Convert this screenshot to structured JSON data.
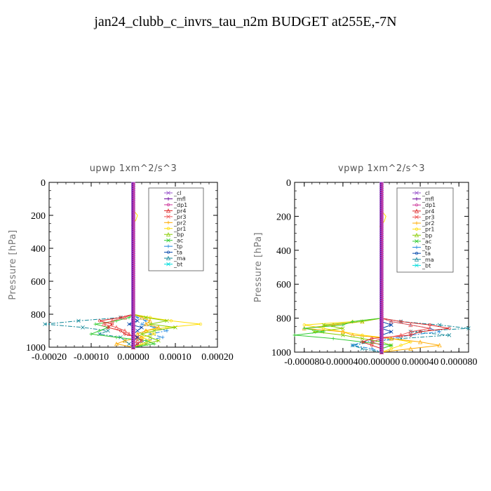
{
  "title": "jan24_clubb_c_invrs_tau_n2m  BUDGET at255E,-7N",
  "legend_items": [
    {
      "name": "_cl",
      "color": "#9955cc"
    },
    {
      "name": "_mfl",
      "color": "#660099"
    },
    {
      "name": "_dp1",
      "color": "#cc3399"
    },
    {
      "name": "_pr4",
      "color": "#dd2222"
    },
    {
      "name": "_pr3",
      "color": "#ee5555"
    },
    {
      "name": "_pr2",
      "color": "#ffaa00"
    },
    {
      "name": "_pr1",
      "color": "#ffdd00"
    },
    {
      "name": "_bp",
      "color": "#88cc00"
    },
    {
      "name": "_ac",
      "color": "#33cc33"
    },
    {
      "name": "_tp",
      "color": "#2288dd"
    },
    {
      "name": "_ta",
      "color": "#0044aa"
    },
    {
      "name": "_ma",
      "color": "#118899"
    },
    {
      "name": "_bt",
      "color": "#00dddd"
    }
  ],
  "chart_data": [
    {
      "type": "line",
      "title": "upwp   1xm^2/s^3",
      "ylabel": "Pressure [hPa]",
      "xlim": [
        -0.0002,
        0.0002
      ],
      "ylim": [
        1000,
        0
      ],
      "x_ticks": [
        "-0.00020",
        "-0.00010",
        "0.00000",
        "0.00010",
        "0.00020"
      ],
      "x_tick_values": [
        -0.0002,
        -0.0001,
        0,
        0.0001,
        0.0002
      ],
      "y_ticks": [
        "0",
        "200",
        "400",
        "600",
        "800",
        "1000"
      ],
      "y_tick_values": [
        0,
        200,
        400,
        600,
        800,
        1000
      ],
      "pressure": [
        800,
        820,
        840,
        860,
        880,
        900,
        920,
        940,
        960,
        980,
        1000
      ],
      "series": [
        {
          "name": "_ma",
          "values": [
            0,
            -3e-05,
            -0.00013,
            -0.00021,
            -0.00012,
            -6e-05,
            -8e-05,
            -3e-05,
            -2e-05,
            -1e-05,
            0
          ]
        },
        {
          "name": "_tp",
          "values": [
            0,
            1e-05,
            3e-05,
            2e-05,
            5e-05,
            8e-05,
            4e-05,
            7e-05,
            3e-05,
            1e-05,
            0
          ]
        },
        {
          "name": "_pr1",
          "values": [
            0,
            4e-05,
            9e-05,
            0.00016,
            8e-05,
            3e-05,
            5e-05,
            2e-05,
            4e-05,
            2e-05,
            0
          ]
        },
        {
          "name": "_pr2",
          "values": [
            0,
            2e-05,
            4e-05,
            3e-05,
            6e-05,
            3e-05,
            1e-05,
            2e-05,
            -2e-05,
            -4e-05,
            0
          ]
        },
        {
          "name": "_bp",
          "values": [
            0,
            3e-05,
            8e-05,
            4e-05,
            0.0001,
            5e-05,
            2e-05,
            4e-05,
            6e-05,
            3e-05,
            0
          ]
        },
        {
          "name": "_ac",
          "values": [
            0,
            -1e-05,
            -4e-05,
            -9e-05,
            -6e-05,
            -8e-05,
            -0.0001,
            -4e-05,
            3e-05,
            5e-05,
            0
          ]
        },
        {
          "name": "_pr4",
          "values": [
            0,
            -3e-05,
            -8e-05,
            -5e-05,
            -6e-05,
            -3e-05,
            -2e-05,
            1e-05,
            2e-05,
            1e-05,
            0
          ]
        },
        {
          "name": "_pr3",
          "values": [
            0,
            -2e-05,
            -5e-05,
            -7e-05,
            -4e-05,
            -2e-05,
            -1e-05,
            0,
            1e-05,
            0,
            0
          ]
        },
        {
          "name": "_ta",
          "values": [
            0,
            0,
            1e-05,
            -1e-05,
            2e-05,
            1e-05,
            0,
            1e-05,
            0,
            0,
            0
          ]
        },
        {
          "name": "_cl",
          "values": [
            0,
            0,
            0,
            0,
            0,
            0,
            0,
            0,
            0,
            0,
            0
          ]
        },
        {
          "name": "_mfl",
          "values": [
            0,
            0,
            0,
            0,
            0,
            0,
            0,
            0,
            0,
            0,
            0
          ]
        },
        {
          "name": "_dp1",
          "values": [
            0,
            0,
            0,
            0,
            0,
            0,
            0,
            0,
            0,
            0,
            0
          ]
        }
      ]
    },
    {
      "type": "line",
      "title": "vpwp   1xm^2/s^3",
      "ylabel": "Pressure [hPa]",
      "xlim": [
        -9e-05,
        9e-05
      ],
      "ylim": [
        1000,
        0
      ],
      "x_ticks": [
        "-0.000080",
        "-0.000040",
        "0.000000",
        "0.000040",
        "0.000080"
      ],
      "x_tick_values": [
        -8e-05,
        -4e-05,
        0,
        4e-05,
        8e-05
      ],
      "y_ticks": [
        "0",
        "200",
        "400",
        "600",
        "800",
        "1000"
      ],
      "y_tick_values": [
        0,
        200,
        400,
        600,
        800,
        1000
      ],
      "pressure": [
        800,
        820,
        840,
        860,
        880,
        900,
        920,
        940,
        960,
        980,
        1000
      ],
      "series": [
        {
          "name": "_ma",
          "values": [
            0,
            2e-05,
            6e-05,
            9e-05,
            3e-05,
            7e-05,
            2e-05,
            -1e-05,
            -3e-05,
            -2e-05,
            0
          ]
        },
        {
          "name": "_tp",
          "values": [
            0,
            1e-05,
            3e-05,
            5e-05,
            6e-05,
            3e-05,
            1e-05,
            -2e-05,
            -3e-05,
            -1e-05,
            0
          ]
        },
        {
          "name": "_pr1",
          "values": [
            0,
            -3e-05,
            -8e-05,
            -6e-05,
            -4e-05,
            -2e-05,
            1e-05,
            3e-05,
            2e-05,
            1e-05,
            0
          ]
        },
        {
          "name": "_pr2",
          "values": [
            0,
            -2e-05,
            -5e-05,
            -8e-05,
            -4e-05,
            -3e-05,
            1e-05,
            4e-05,
            6e-05,
            3e-05,
            0
          ]
        },
        {
          "name": "_bp",
          "values": [
            0,
            -2e-05,
            -6e-05,
            -4e-05,
            -7e-05,
            -4e-05,
            -2e-05,
            0,
            1e-05,
            0,
            0
          ]
        },
        {
          "name": "_ac",
          "values": [
            0,
            -3e-05,
            -4e-05,
            -8e-05,
            -6e-05,
            -9e-05,
            -5e-05,
            -2e-05,
            1e-05,
            0,
            0
          ]
        },
        {
          "name": "_pr4",
          "values": [
            0,
            2e-05,
            5e-05,
            7e-05,
            4e-05,
            3e-05,
            -1e-05,
            -2e-05,
            -1e-05,
            0,
            0
          ]
        },
        {
          "name": "_pr3",
          "values": [
            0,
            1e-05,
            3e-05,
            5e-05,
            3e-05,
            2e-05,
            0,
            -1e-05,
            0,
            0,
            0
          ]
        },
        {
          "name": "_ta",
          "values": [
            0,
            0,
            1e-05,
            0,
            1e-05,
            0,
            0,
            0,
            0,
            0,
            0
          ]
        },
        {
          "name": "_cl",
          "values": [
            0,
            0,
            0,
            0,
            0,
            0,
            0,
            0,
            0,
            0,
            0
          ]
        },
        {
          "name": "_mfl",
          "values": [
            0,
            0,
            0,
            0,
            0,
            0,
            0,
            0,
            0,
            0,
            0
          ]
        },
        {
          "name": "_dp1",
          "values": [
            0,
            0,
            0,
            0,
            0,
            0,
            0,
            0,
            0,
            0,
            0
          ]
        }
      ]
    }
  ]
}
